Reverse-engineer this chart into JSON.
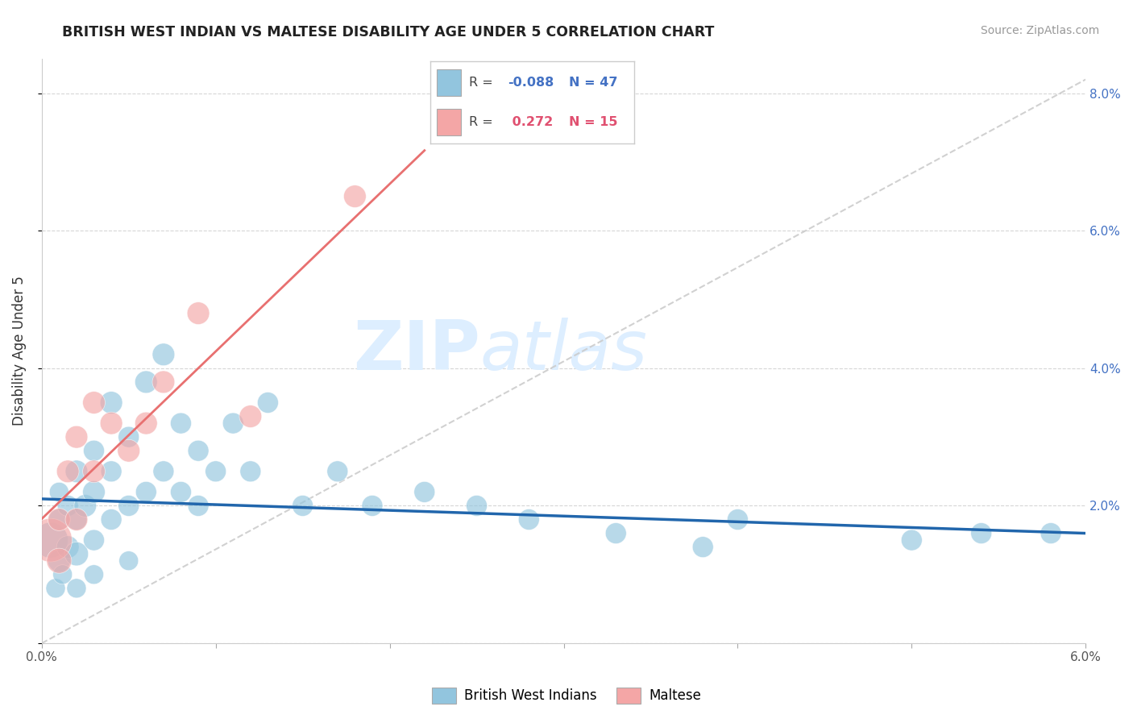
{
  "title": "BRITISH WEST INDIAN VS MALTESE DISABILITY AGE UNDER 5 CORRELATION CHART",
  "source": "Source: ZipAtlas.com",
  "ylabel": "Disability Age Under 5",
  "x_min": 0.0,
  "x_max": 0.06,
  "y_min": 0.0,
  "y_max": 0.085,
  "x_ticks": [
    0.0,
    0.01,
    0.02,
    0.03,
    0.04,
    0.05,
    0.06
  ],
  "x_tick_labels": [
    "0.0%",
    "",
    "",
    "",
    "",
    "",
    "6.0%"
  ],
  "y_ticks": [
    0.0,
    0.02,
    0.04,
    0.06,
    0.08
  ],
  "y_tick_labels_right": [
    "",
    "2.0%",
    "4.0%",
    "6.0%",
    "8.0%"
  ],
  "blue_color": "#92c5de",
  "pink_color": "#f4a6a6",
  "trend_blue_color": "#2166ac",
  "trend_gray_color": "#bbbbbb",
  "watermark_color": "#ddeeff",
  "bwi_x": [
    0.0005,
    0.001,
    0.001,
    0.001,
    0.0015,
    0.0015,
    0.002,
    0.002,
    0.002,
    0.0025,
    0.003,
    0.003,
    0.003,
    0.004,
    0.004,
    0.004,
    0.005,
    0.005,
    0.006,
    0.006,
    0.007,
    0.007,
    0.008,
    0.008,
    0.009,
    0.009,
    0.01,
    0.011,
    0.012,
    0.013,
    0.015,
    0.017,
    0.019,
    0.022,
    0.025,
    0.028,
    0.033,
    0.038,
    0.04,
    0.05,
    0.054,
    0.058,
    0.0008,
    0.0012,
    0.002,
    0.003,
    0.005
  ],
  "bwi_y": [
    0.015,
    0.012,
    0.018,
    0.022,
    0.014,
    0.02,
    0.013,
    0.018,
    0.025,
    0.02,
    0.015,
    0.022,
    0.028,
    0.018,
    0.025,
    0.035,
    0.02,
    0.03,
    0.022,
    0.038,
    0.025,
    0.042,
    0.022,
    0.032,
    0.02,
    0.028,
    0.025,
    0.032,
    0.025,
    0.035,
    0.02,
    0.025,
    0.02,
    0.022,
    0.02,
    0.018,
    0.016,
    0.014,
    0.018,
    0.015,
    0.016,
    0.016,
    0.008,
    0.01,
    0.008,
    0.01,
    0.012
  ],
  "bwi_size": [
    200,
    80,
    70,
    60,
    80,
    70,
    90,
    70,
    80,
    80,
    70,
    80,
    70,
    70,
    70,
    80,
    70,
    70,
    70,
    80,
    70,
    80,
    70,
    70,
    70,
    70,
    70,
    70,
    70,
    70,
    70,
    70,
    70,
    70,
    70,
    70,
    70,
    70,
    70,
    70,
    70,
    70,
    60,
    60,
    60,
    60,
    60
  ],
  "maltese_x": [
    0.0005,
    0.001,
    0.001,
    0.0015,
    0.002,
    0.002,
    0.003,
    0.003,
    0.004,
    0.005,
    0.006,
    0.007,
    0.009,
    0.012,
    0.018
  ],
  "maltese_y": [
    0.015,
    0.012,
    0.018,
    0.025,
    0.018,
    0.03,
    0.025,
    0.035,
    0.032,
    0.028,
    0.032,
    0.038,
    0.048,
    0.033,
    0.065
  ],
  "maltese_size": [
    300,
    100,
    80,
    80,
    80,
    80,
    80,
    80,
    80,
    80,
    80,
    80,
    80,
    80,
    80
  ],
  "blue_trend_x": [
    0.0,
    0.06
  ],
  "blue_trend_y": [
    0.021,
    0.016
  ],
  "gray_trend_x": [
    0.0,
    0.06
  ],
  "gray_trend_y": [
    0.0,
    0.082
  ]
}
